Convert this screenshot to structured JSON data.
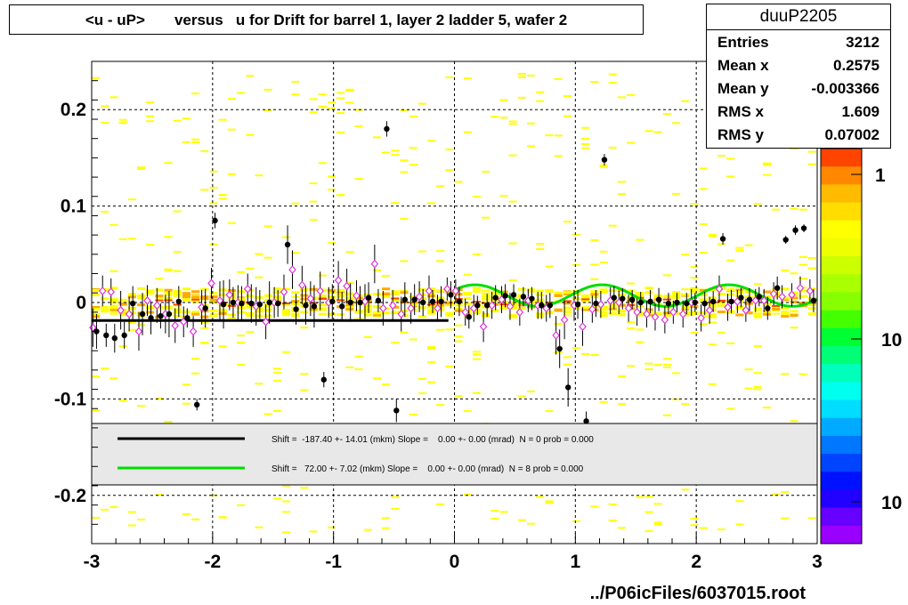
{
  "title": "<u - uP>       versus   u for Drift for barrel 1, layer 2 ladder 5, wafer 2",
  "stats": {
    "name": "duuP2205",
    "rows": [
      {
        "label": "Entries",
        "value": "3212"
      },
      {
        "label": "Mean x",
        "value": "0.2575"
      },
      {
        "label": "Mean y",
        "value": "-0.003366"
      },
      {
        "label": "RMS x",
        "value": "1.609"
      },
      {
        "label": "RMS y",
        "value": "0.07002"
      }
    ]
  },
  "footer": "../P06icFiles/6037015.root",
  "legend": [
    {
      "color": "#000000",
      "text": "Shift =  -187.40 +- 14.01 (mkm) Slope =    0.00 +- 0.00 (mrad)  N = 0 prob = 0.000"
    },
    {
      "color": "#00dd00",
      "text": "Shift =   72.00 +- 7.02 (mkm) Slope =    0.00 +- 0.00 (mrad)  N = 8 prob = 0.000"
    }
  ],
  "palette_labels": [
    "1",
    "10",
    "10"
  ],
  "colors": {
    "frame": "#000000",
    "grid": "#000000",
    "heat_low": "#ffff00",
    "heat_mid": "#ffaa00",
    "heat_high": "#ff4400",
    "profile_marker": "#000000",
    "open_marker": "#dd33dd",
    "fit_green": "#00dd00",
    "fit_black": "#000000"
  },
  "chart_data": {
    "type": "scatter",
    "subtype": "2D histogram with profile overlays",
    "title": "<u - uP>       versus   u for Drift for barrel 1, layer 2 ladder 5, wafer 2",
    "xlim": [
      -3,
      3
    ],
    "ylim": [
      -0.25,
      0.25
    ],
    "x_ticks": [
      -3,
      -2,
      -1,
      0,
      1,
      2,
      3
    ],
    "y_ticks": [
      -0.2,
      -0.1,
      0,
      0.1,
      0.2
    ],
    "x_tick_labels": [
      "-3",
      "-2",
      "-1",
      "0",
      "1",
      "2",
      "3"
    ],
    "y_tick_labels": [
      "-0.2",
      "-0.1",
      "0",
      "0.1",
      "0.2"
    ],
    "grid": true,
    "legend_position": "lower band inside plot",
    "profile_filled": {
      "x": [
        -2.96,
        -2.88,
        -2.81,
        -2.73,
        -2.66,
        -2.58,
        -2.51,
        -2.43,
        -2.36,
        -2.28,
        -2.21,
        -2.13,
        -2.06,
        -1.98,
        -1.91,
        -1.83,
        -1.76,
        -1.68,
        -1.61,
        -1.53,
        -1.46,
        -1.38,
        -1.31,
        -1.23,
        -1.16,
        -1.08,
        -1.01,
        -0.93,
        -0.86,
        -0.78,
        -0.71,
        -0.63,
        -0.56,
        -0.48,
        -0.41,
        -0.33,
        -0.26,
        -0.18,
        -0.11,
        -0.03,
        0.04,
        0.12,
        0.19,
        0.27,
        0.34,
        0.42,
        0.49,
        0.57,
        0.64,
        0.72,
        0.79,
        0.87,
        0.94,
        1.02,
        1.09,
        1.17,
        1.24,
        1.32,
        1.39,
        1.47,
        1.54,
        1.62,
        1.69,
        1.77,
        1.84,
        1.92,
        1.99,
        2.07,
        2.14,
        2.22,
        2.29,
        2.37,
        2.44,
        2.52,
        2.59,
        2.67,
        2.74,
        2.82,
        2.89,
        2.97
      ],
      "y": [
        -0.03,
        -0.034,
        -0.037,
        -0.034,
        -0.001,
        -0.012,
        -0.016,
        -0.014,
        -0.012,
        0.001,
        -0.016,
        -0.106,
        -0.006,
        0.085,
        -0.002,
        0.0,
        -0.001,
        -0.001,
        -0.002,
        0.0,
        -0.001,
        0.06,
        -0.007,
        -0.003,
        -0.004,
        -0.08,
        0.001,
        -0.004,
        0.0,
        0.0,
        0.005,
        0.002,
        0.18,
        -0.112,
        0.003,
        0.003,
        0.0,
        0.001,
        0.001,
        0.008,
        0.001,
        -0.015,
        -0.003,
        -0.003,
        0.005,
        0.007,
        0.008,
        0.006,
        0.004,
        -0.003,
        -0.003,
        -0.048,
        -0.088,
        -0.002,
        -0.123,
        -0.001,
        0.148,
        0.005,
        0.004,
        0.003,
        0.0,
        0.001,
        0.003,
        -0.001,
        0.0,
        -0.001,
        0.0,
        -0.001,
        0.001,
        0.066,
        0.001,
        0.005,
        0.003,
        0.006,
        -0.006,
        0.015,
        0.065,
        0.075,
        0.077,
        0.002
      ],
      "yerr": [
        0.018,
        0.012,
        0.015,
        0.014,
        0.018,
        0.022,
        0.017,
        0.013,
        0.024,
        0.016,
        0.01,
        0.006,
        0.02,
        0.008,
        0.025,
        0.016,
        0.018,
        0.02,
        0.015,
        0.022,
        0.014,
        0.02,
        0.016,
        0.02,
        0.022,
        0.008,
        0.018,
        0.015,
        0.02,
        0.017,
        0.016,
        0.012,
        0.008,
        0.012,
        0.018,
        0.016,
        0.014,
        0.012,
        0.016,
        0.014,
        0.015,
        0.012,
        0.01,
        0.012,
        0.013,
        0.012,
        0.011,
        0.01,
        0.012,
        0.014,
        0.013,
        0.02,
        0.02,
        0.015,
        0.01,
        0.014,
        0.006,
        0.012,
        0.011,
        0.01,
        0.011,
        0.012,
        0.012,
        0.011,
        0.01,
        0.011,
        0.01,
        0.012,
        0.011,
        0.006,
        0.012,
        0.01,
        0.012,
        0.01,
        0.012,
        0.012,
        0.004,
        0.005,
        0.004,
        0.012
      ]
    },
    "profile_open": {
      "x": [
        -2.99,
        -2.91,
        -2.84,
        -2.76,
        -2.69,
        -2.61,
        -2.54,
        -2.46,
        -2.39,
        -2.31,
        -2.24,
        -2.16,
        -2.09,
        -2.01,
        -1.94,
        -1.86,
        -1.79,
        -1.71,
        -1.64,
        -1.56,
        -1.49,
        -1.41,
        -1.34,
        -1.26,
        -1.19,
        -1.11,
        -1.04,
        -0.96,
        -0.89,
        -0.81,
        -0.74,
        -0.66,
        -0.59,
        -0.51,
        -0.44,
        -0.36,
        -0.29,
        -0.21,
        -0.14,
        -0.06,
        0.01,
        0.09,
        0.16,
        0.24,
        0.31,
        0.39,
        0.46,
        0.54,
        0.61,
        0.69,
        0.76,
        0.84,
        0.91,
        0.99,
        1.06,
        1.14,
        1.21,
        1.29,
        1.36,
        1.44,
        1.51,
        1.59,
        1.66,
        1.74,
        1.81,
        1.89,
        1.96,
        2.04,
        2.11,
        2.19,
        2.26,
        2.34,
        2.41,
        2.49,
        2.56,
        2.64,
        2.71,
        2.79,
        2.86,
        2.94
      ],
      "y": [
        -0.026,
        0.012,
        0.011,
        -0.008,
        -0.012,
        -0.03,
        0.002,
        -0.003,
        -0.012,
        -0.024,
        -0.02,
        -0.03,
        -0.005,
        0.02,
        0.002,
        0.008,
        0.0,
        0.014,
        -0.004,
        -0.02,
        0.0,
        0.011,
        0.034,
        0.018,
        0.004,
        0.012,
        0.0,
        0.023,
        0.017,
        0.007,
        0.001,
        0.04,
        -0.006,
        -0.003,
        -0.012,
        -0.006,
        0.006,
        0.012,
        -0.006,
        0.014,
        0.012,
        -0.01,
        -0.006,
        -0.025,
        -0.003,
        0.003,
        -0.004,
        -0.01,
        0.002,
        -0.003,
        -0.006,
        -0.034,
        -0.018,
        -0.003,
        -0.025,
        -0.007,
        -0.002,
        0.002,
        0.0,
        -0.006,
        -0.01,
        -0.012,
        -0.015,
        -0.018,
        -0.01,
        -0.012,
        0.0,
        -0.016,
        -0.008,
        0.014,
        -0.005,
        0.001,
        -0.008,
        0.002,
        0.002,
        0.009,
        0.006,
        0.008,
        0.015,
        0.012
      ],
      "yerr": [
        0.02,
        0.016,
        0.014,
        0.02,
        0.018,
        0.02,
        0.016,
        0.018,
        0.02,
        0.018,
        0.016,
        0.016,
        0.018,
        0.016,
        0.02,
        0.016,
        0.018,
        0.016,
        0.02,
        0.018,
        0.016,
        0.018,
        0.02,
        0.02,
        0.018,
        0.02,
        0.016,
        0.02,
        0.018,
        0.016,
        0.018,
        0.02,
        0.018,
        0.016,
        0.018,
        0.016,
        0.016,
        0.016,
        0.014,
        0.012,
        0.012,
        0.014,
        0.014,
        0.016,
        0.014,
        0.014,
        0.014,
        0.014,
        0.012,
        0.014,
        0.014,
        0.02,
        0.02,
        0.016,
        0.02,
        0.014,
        0.014,
        0.014,
        0.012,
        0.014,
        0.014,
        0.014,
        0.014,
        0.014,
        0.012,
        0.014,
        0.014,
        0.014,
        0.014,
        0.014,
        0.014,
        0.012,
        0.012,
        0.012,
        0.012,
        0.012,
        0.012,
        0.012,
        0.012,
        0.012
      ]
    },
    "fit_black": {
      "x_range": [
        -3,
        -0.05
      ],
      "y": -0.0187
    },
    "fit_green": {
      "x_range": [
        0,
        3
      ],
      "offset": 0.0072,
      "amplitude": 0.0112,
      "period": 1.05,
      "phase": 0.55
    }
  }
}
